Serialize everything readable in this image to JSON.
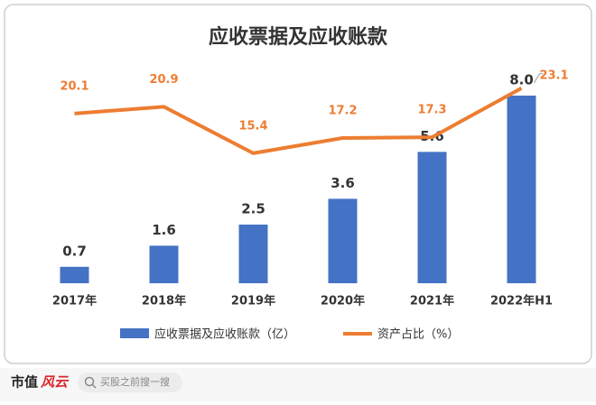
{
  "chart_data": {
    "type": "bar-line",
    "title": "应收票据及应收账款",
    "categories": [
      "2017年",
      "2018年",
      "2019年",
      "2020年",
      "2021年",
      "2022年H1"
    ],
    "series": [
      {
        "name": "应收票据及应收账款（亿）",
        "color": "#4472c4",
        "type": "bar",
        "values": [
          0.7,
          1.6,
          2.5,
          3.6,
          5.6,
          8.0
        ],
        "value_labels": [
          "0.7",
          "1.6",
          "2.5",
          "3.6",
          "5.6",
          "8.0"
        ]
      },
      {
        "name": "资产占比（%）",
        "color": "#ed7d31",
        "type": "line",
        "axis": "y2",
        "values": [
          20.1,
          20.9,
          15.4,
          17.2,
          17.3,
          23.1
        ]
      }
    ],
    "ylim": [
      0,
      9
    ],
    "y2lim": [
      0,
      25
    ],
    "legend": "bottom"
  },
  "footer": {
    "brand_main": "市值",
    "brand_accent": "风云",
    "search_placeholder": "买股之前搜一搜"
  }
}
